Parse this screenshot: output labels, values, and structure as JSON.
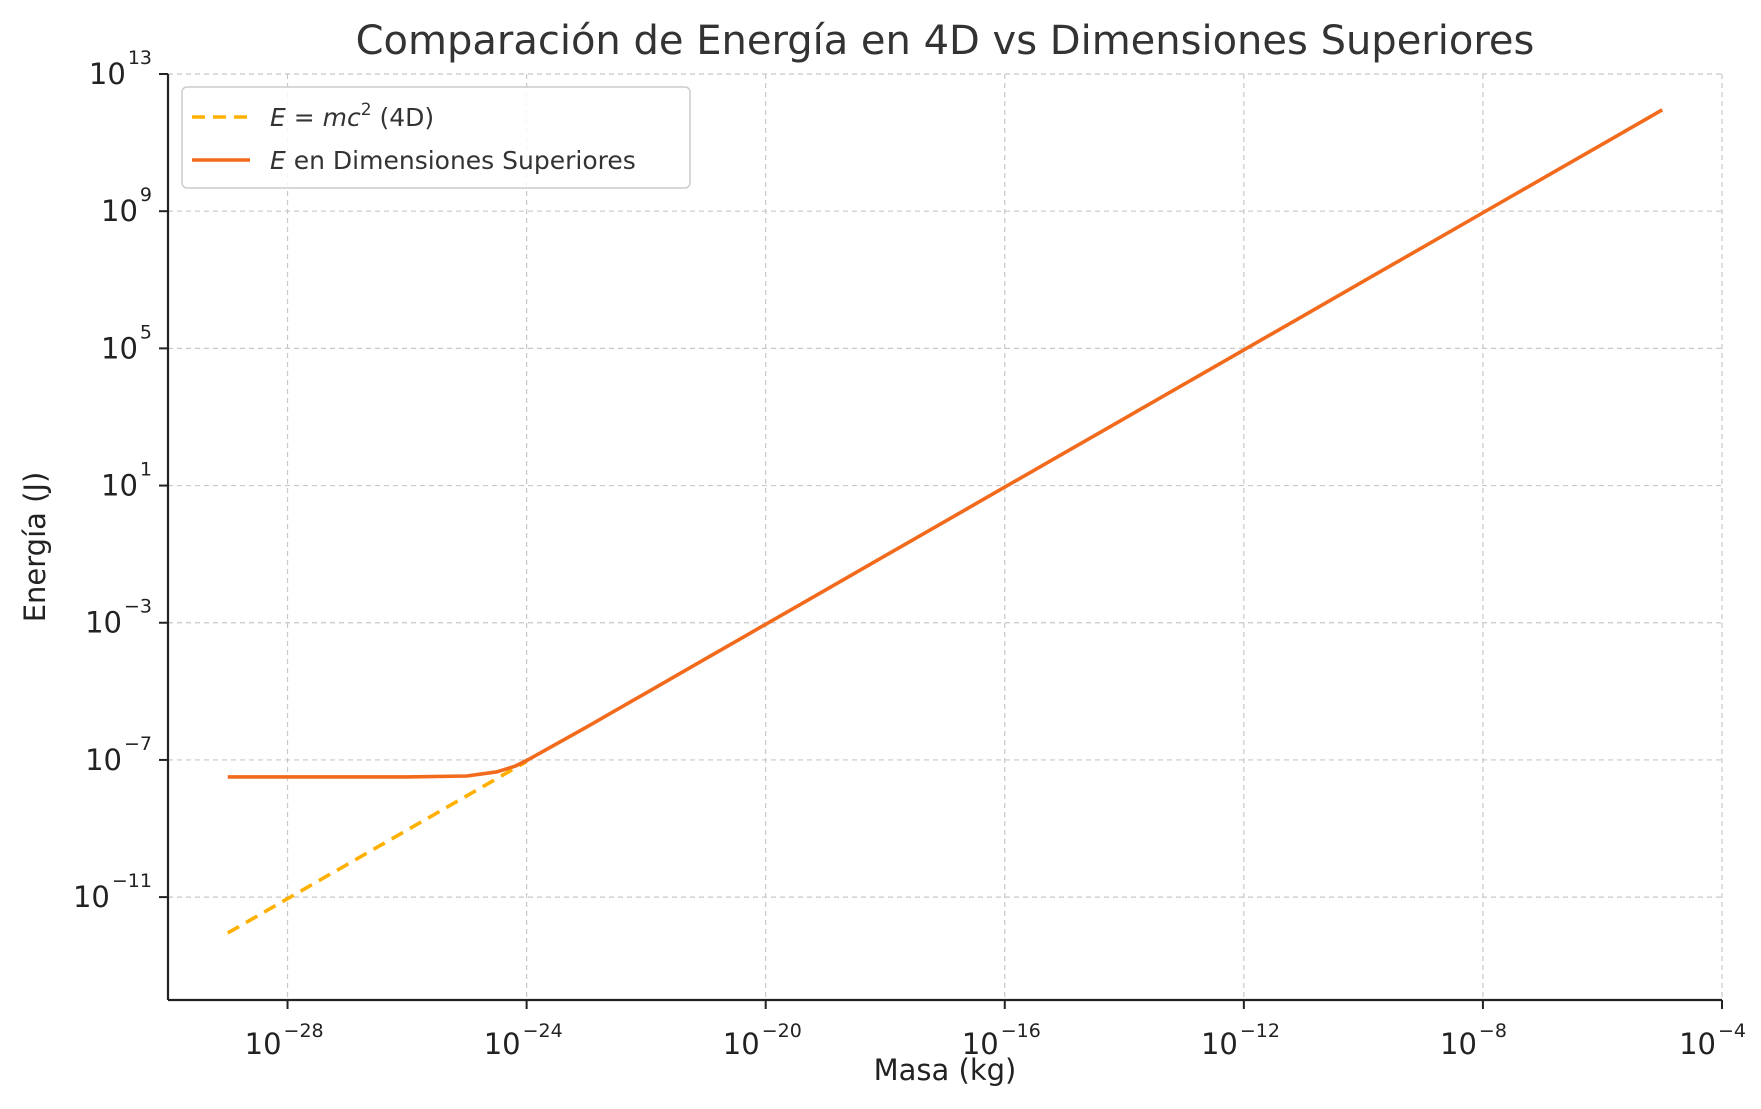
{
  "chart_data": {
    "type": "line",
    "title": "Comparación de Energía en 4D vs Dimensiones Superiores",
    "xlabel": "Masa (kg)",
    "ylabel": "Energía (J)",
    "xscale": "log",
    "yscale": "log",
    "xlim": [
      1e-30,
      0.0001
    ],
    "ylim": [
      1e-14,
      10000000000000.0
    ],
    "x_ticks": [
      {
        "base": "10",
        "exp": "−28",
        "value": 1e-28
      },
      {
        "base": "10",
        "exp": "−24",
        "value": 1e-24
      },
      {
        "base": "10",
        "exp": "−20",
        "value": 1e-20
      },
      {
        "base": "10",
        "exp": "−16",
        "value": 1e-16
      },
      {
        "base": "10",
        "exp": "−12",
        "value": 1e-12
      },
      {
        "base": "10",
        "exp": "−8",
        "value": 1e-08
      },
      {
        "base": "10",
        "exp": "−4",
        "value": 0.0001
      }
    ],
    "y_ticks": [
      {
        "base": "10",
        "exp": "−11",
        "value": 1e-11
      },
      {
        "base": "10",
        "exp": "−7",
        "value": 1e-07
      },
      {
        "base": "10",
        "exp": "−3",
        "value": 0.001
      },
      {
        "base": "10",
        "exp": "1",
        "value": 10.0
      },
      {
        "base": "10",
        "exp": "5",
        "value": 100000.0
      },
      {
        "base": "10",
        "exp": "9",
        "value": 1000000000.0
      },
      {
        "base": "10",
        "exp": "13",
        "value": 10000000000000.0
      }
    ],
    "grid": true,
    "legend_position": "top-left",
    "series": [
      {
        "name": "E = mc² (4D)",
        "legend_parts": {
          "italic": "E = mc",
          "sup": "2",
          "rest": " (4D)"
        },
        "color": "#FFB000",
        "style": "dashed",
        "x": [
          1e-29,
          1e-28,
          1e-27,
          1e-26,
          1e-25,
          1e-24
        ],
        "y": [
          9e-13,
          9e-12,
          9e-11,
          9e-10,
          9e-09,
          9e-08
        ]
      },
      {
        "name": "E en Dimensiones Superiores",
        "legend_parts": {
          "italic": "E",
          "sup": "",
          "rest": " en Dimensiones Superiores"
        },
        "color": "#F26A1B",
        "style": "solid",
        "x": [
          1e-29,
          1e-28,
          1e-27,
          1e-26,
          1e-25,
          3.2e-25,
          6.3e-25,
          1e-24,
          1e-23,
          1e-22,
          1e-21,
          1e-20,
          1e-19,
          1e-18,
          1e-17,
          1e-16,
          1e-15,
          1e-14,
          1e-13,
          1e-12,
          1e-11,
          1e-10,
          1e-09,
          1e-08,
          1e-07,
          1e-06,
          1e-05
        ],
        "y": [
          3.2e-08,
          3.2e-08,
          3.2e-08,
          3.2e-08,
          3.4e-08,
          4.5e-08,
          6.5e-08,
          9.6e-08,
          9e-07,
          9e-06,
          9e-05,
          0.0009,
          0.009,
          0.09,
          0.9,
          9,
          90,
          900,
          9000,
          90000.0,
          900000.0,
          9000000.0,
          90000000.0,
          900000000.0,
          9000000000.0,
          90000000000.0,
          900000000000.0
        ]
      }
    ]
  }
}
